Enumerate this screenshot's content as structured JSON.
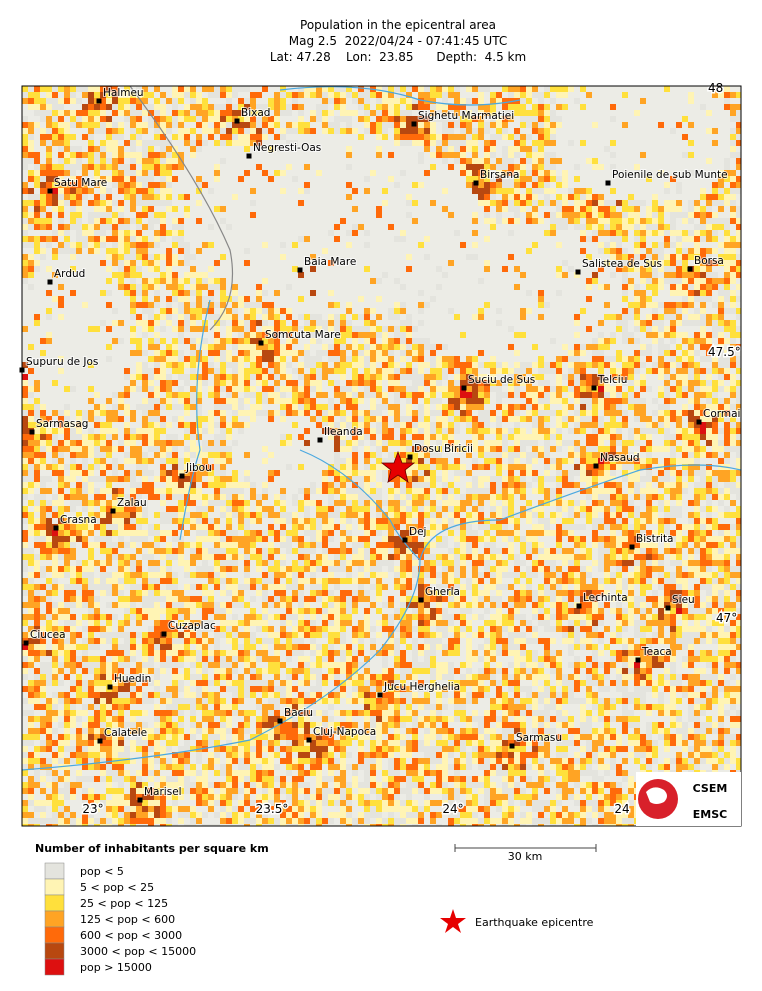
{
  "title": {
    "line1": "Population in the epicentral area",
    "line2": "Mag 2.5  2022/04/24 - 07:41:45 UTC",
    "line3": "Lat: 47.28    Lon:  23.85      Depth:  4.5 km"
  },
  "towns": [
    "Halmeu",
    "Bixad",
    "Sighetu Marmatiei",
    "Negresti-Oas",
    "Satu Mare",
    "Birsana",
    "Poienile de sub Munte",
    "Ardud",
    "Baia Mare",
    "Salistea de Sus",
    "Borsa",
    "Somcuta Mare",
    "Supuru de Jos",
    "Suciu de Sus",
    "Telciu",
    "Cormai",
    "Sarmasag",
    "Ileanda",
    "Dosu Biricii",
    "Jibou",
    "Nasaud",
    "Zalau",
    "Crasna",
    "Dej",
    "Bistrita",
    "Gherla",
    "Lechinta",
    "Sieu",
    "Ciucea",
    "Cuzaplac",
    "Teaca",
    "Huedin",
    "Jucu Herghelia",
    "Baciu",
    "Cluj-Napoca",
    "Calatele",
    "Sarmasu",
    "Marisel"
  ],
  "lon_labels": [
    "23°",
    "23.5°",
    "24°",
    "24"
  ],
  "lat_labels": [
    "48",
    "47.5°",
    "47°"
  ],
  "legend": {
    "title": "Number of inhabitants per square km",
    "items": [
      {
        "label": "pop < 5",
        "color": "#e4e4de"
      },
      {
        "label": "5 < pop < 25",
        "color": "#fff4b4"
      },
      {
        "label": "25 < pop < 125",
        "color": "#ffe03c"
      },
      {
        "label": "125 < pop < 600",
        "color": "#ffa424"
      },
      {
        "label": "600 < pop < 3000",
        "color": "#ff6a0a"
      },
      {
        "label": "3000 < pop < 15000",
        "color": "#b84810"
      },
      {
        "label": "pop > 15000",
        "color": "#dd1010"
      }
    ]
  },
  "scale_bar": "30 km",
  "epicentre_label": "Earthquake epicentre",
  "logo": [
    "CSEM",
    "EMSC"
  ]
}
